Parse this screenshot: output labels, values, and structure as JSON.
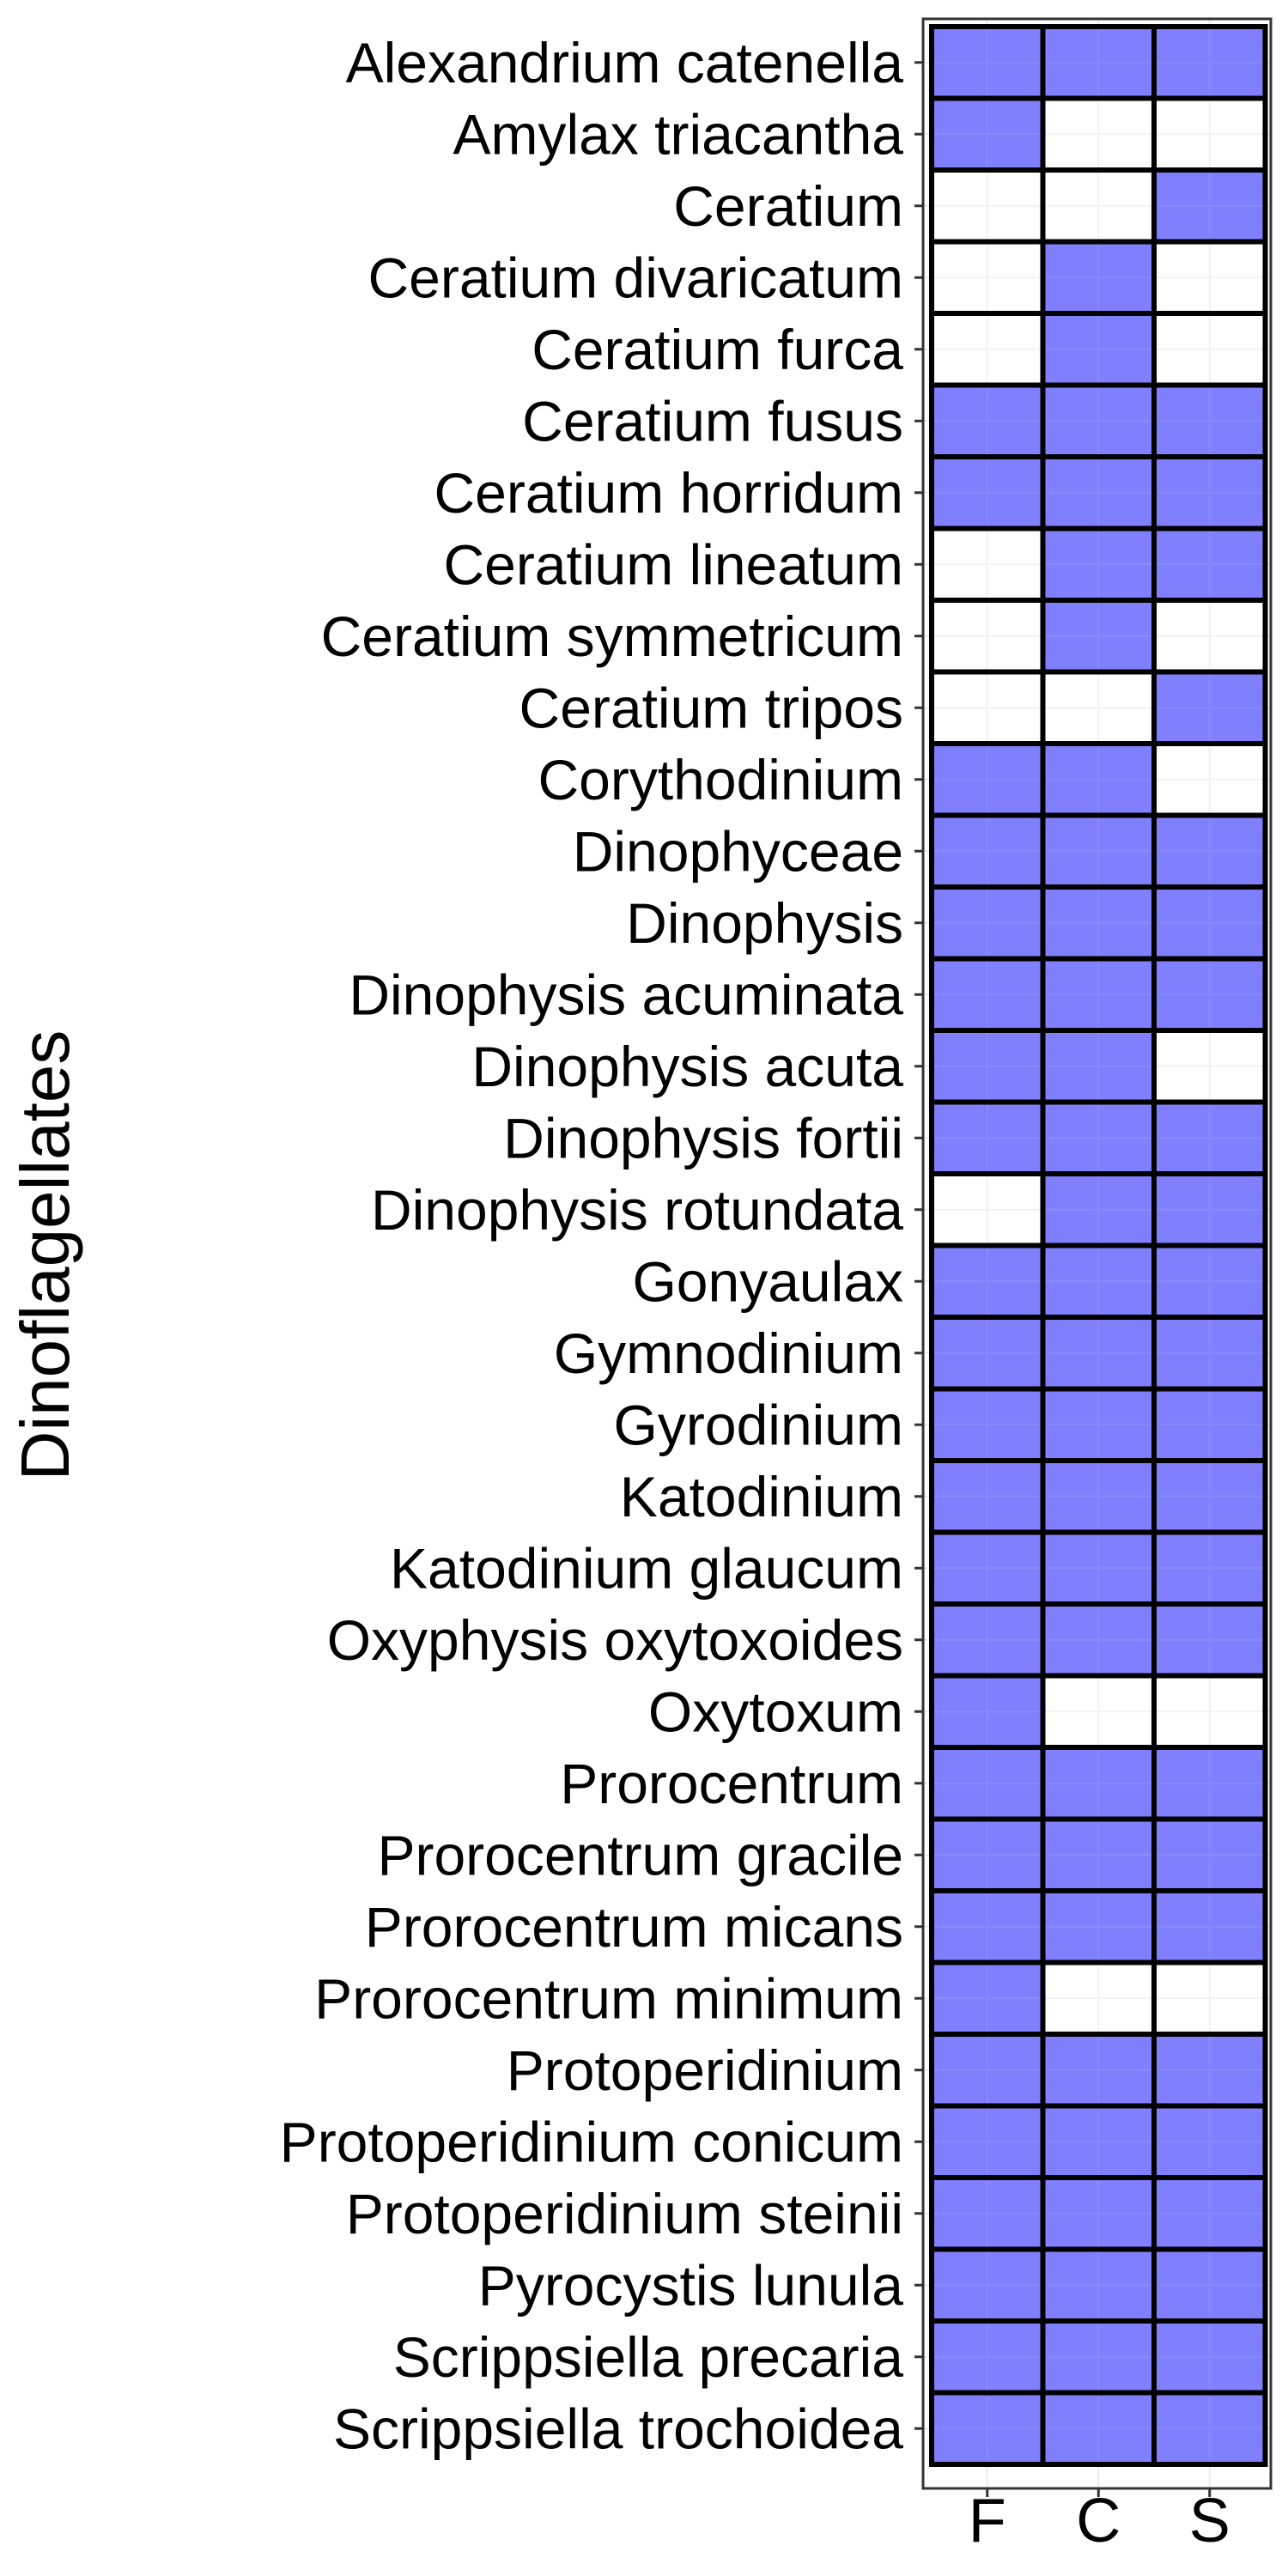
{
  "chart_data": {
    "type": "heatmap",
    "title": "",
    "ylabel": "Dinoflagellates",
    "xlabel": "",
    "x_categories": [
      "F",
      "C",
      "S"
    ],
    "y_categories": [
      "Alexandrium catenella",
      "Amylax triacantha",
      "Ceratium",
      "Ceratium divaricatum",
      "Ceratium furca",
      "Ceratium fusus",
      "Ceratium horridum",
      "Ceratium lineatum",
      "Ceratium symmetricum",
      "Ceratium tripos",
      "Corythodinium",
      "Dinophyceae",
      "Dinophysis",
      "Dinophysis acuminata",
      "Dinophysis acuta",
      "Dinophysis fortii",
      "Dinophysis rotundata",
      "Gonyaulax",
      "Gymnodinium",
      "Gyrodinium",
      "Katodinium",
      "Katodinium glaucum",
      "Oxyphysis oxytoxoides",
      "Oxytoxum",
      "Prorocentrum",
      "Prorocentrum gracile",
      "Prorocentrum micans",
      "Prorocentrum minimum",
      "Protoperidinium",
      "Protoperidinium conicum",
      "Protoperidinium steinii",
      "Pyrocystis lunula",
      "Scrippsiella precaria",
      "Scrippsiella trochoidea"
    ],
    "presence": [
      [
        1,
        1,
        1
      ],
      [
        1,
        0,
        0
      ],
      [
        0,
        0,
        1
      ],
      [
        0,
        1,
        0
      ],
      [
        0,
        1,
        0
      ],
      [
        1,
        1,
        1
      ],
      [
        1,
        1,
        1
      ],
      [
        0,
        1,
        1
      ],
      [
        0,
        1,
        0
      ],
      [
        0,
        0,
        1
      ],
      [
        1,
        1,
        0
      ],
      [
        1,
        1,
        1
      ],
      [
        1,
        1,
        1
      ],
      [
        1,
        1,
        1
      ],
      [
        1,
        1,
        0
      ],
      [
        1,
        1,
        1
      ],
      [
        0,
        1,
        1
      ],
      [
        1,
        1,
        1
      ],
      [
        1,
        1,
        1
      ],
      [
        1,
        1,
        1
      ],
      [
        1,
        1,
        1
      ],
      [
        1,
        1,
        1
      ],
      [
        1,
        1,
        1
      ],
      [
        1,
        0,
        0
      ],
      [
        1,
        1,
        1
      ],
      [
        1,
        1,
        1
      ],
      [
        1,
        1,
        1
      ],
      [
        1,
        0,
        0
      ],
      [
        1,
        1,
        1
      ],
      [
        1,
        1,
        1
      ],
      [
        1,
        1,
        1
      ],
      [
        1,
        1,
        1
      ],
      [
        1,
        1,
        1
      ],
      [
        1,
        1,
        1
      ]
    ],
    "colors": {
      "present": "#7b7bff",
      "absent": "#ffffff",
      "cell_border": "#000000",
      "grid": "#ebebeb"
    },
    "grid": true,
    "legend": "none"
  }
}
